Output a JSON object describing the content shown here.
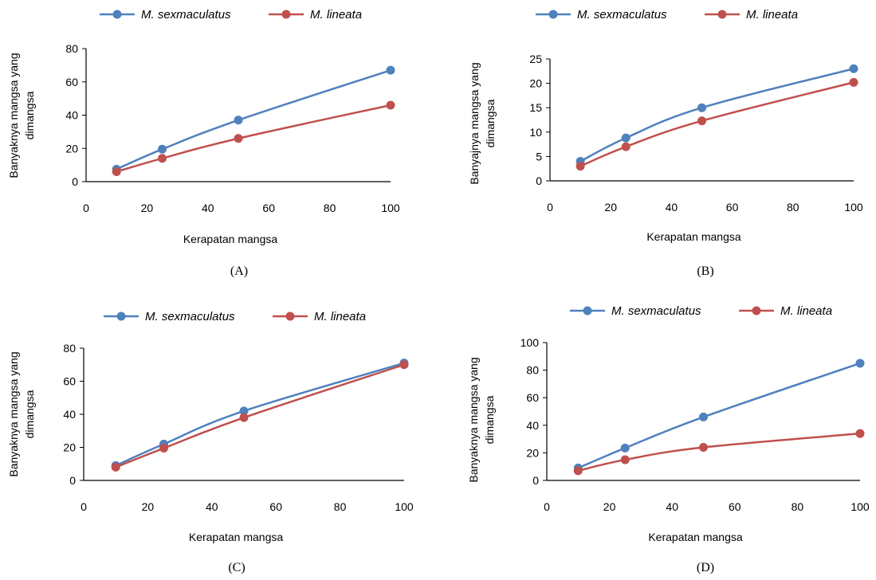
{
  "colors": {
    "M. sexmaculatus": "#4f81bd",
    "M. lineata": "#c0504d"
  },
  "chart_data": [
    {
      "type": "line",
      "panel_label": "(A)",
      "xlabel": "Kerapatan mangsa",
      "ylabel": [
        "Banyaknya mangsa yang",
        "dimangsa"
      ],
      "xlim": [
        0,
        100
      ],
      "ylim": [
        0,
        80
      ],
      "xticks": [
        0,
        20,
        40,
        60,
        80,
        100
      ],
      "yticks": [
        0,
        20,
        40,
        60,
        80
      ],
      "legend_position": "top",
      "grid": false,
      "x": [
        10,
        25,
        50,
        100
      ],
      "series": [
        {
          "name": "M. sexmaculatus",
          "values": [
            7.5,
            19.5,
            37,
            67
          ]
        },
        {
          "name": "M. lineata",
          "values": [
            6,
            14,
            26,
            46
          ]
        }
      ]
    },
    {
      "type": "line",
      "panel_label": "(B)",
      "xlabel": "Kerapatan mangsa",
      "ylabel": [
        "Banyajnya mangsa yang",
        "dimangsa"
      ],
      "xlim": [
        0,
        100
      ],
      "ylim": [
        0,
        25
      ],
      "xticks": [
        0,
        20,
        40,
        60,
        80,
        100
      ],
      "yticks": [
        0,
        5,
        10,
        15,
        20,
        25
      ],
      "legend_position": "top",
      "grid": false,
      "x": [
        10,
        25,
        50,
        100
      ],
      "series": [
        {
          "name": "M. sexmaculatus",
          "values": [
            4,
            8.8,
            15,
            23
          ]
        },
        {
          "name": "M. lineata",
          "values": [
            3,
            7,
            12.3,
            20.2
          ]
        }
      ]
    },
    {
      "type": "line",
      "panel_label": "(C)",
      "xlabel": "Kerapatan mangsa",
      "ylabel": [
        "Banyaknya mangsa yang",
        "dimangsa"
      ],
      "xlim": [
        0,
        100
      ],
      "ylim": [
        0,
        80
      ],
      "xticks": [
        0,
        20,
        40,
        60,
        80,
        100
      ],
      "yticks": [
        0,
        20,
        40,
        60,
        80
      ],
      "legend_position": "top",
      "grid": false,
      "x": [
        10,
        25,
        50,
        100
      ],
      "series": [
        {
          "name": "M. sexmaculatus",
          "values": [
            9,
            22,
            42,
            71
          ]
        },
        {
          "name": "M. lineata",
          "values": [
            8,
            19.5,
            38,
            70
          ]
        }
      ]
    },
    {
      "type": "line",
      "panel_label": "(D)",
      "xlabel": "Kerapatan mangsa",
      "ylabel": [
        "Banyaknya mangsa yang",
        "dimangsa"
      ],
      "xlim": [
        0,
        100
      ],
      "ylim": [
        0,
        100
      ],
      "xticks": [
        0,
        20,
        40,
        60,
        80,
        100
      ],
      "yticks": [
        0,
        20,
        40,
        60,
        80,
        100
      ],
      "legend_position": "top",
      "grid": false,
      "x": [
        10,
        25,
        50,
        100
      ],
      "series": [
        {
          "name": "M. sexmaculatus",
          "values": [
            9,
            23.5,
            46,
            85
          ]
        },
        {
          "name": "M. lineata",
          "values": [
            7,
            15,
            24,
            34
          ]
        }
      ]
    }
  ]
}
